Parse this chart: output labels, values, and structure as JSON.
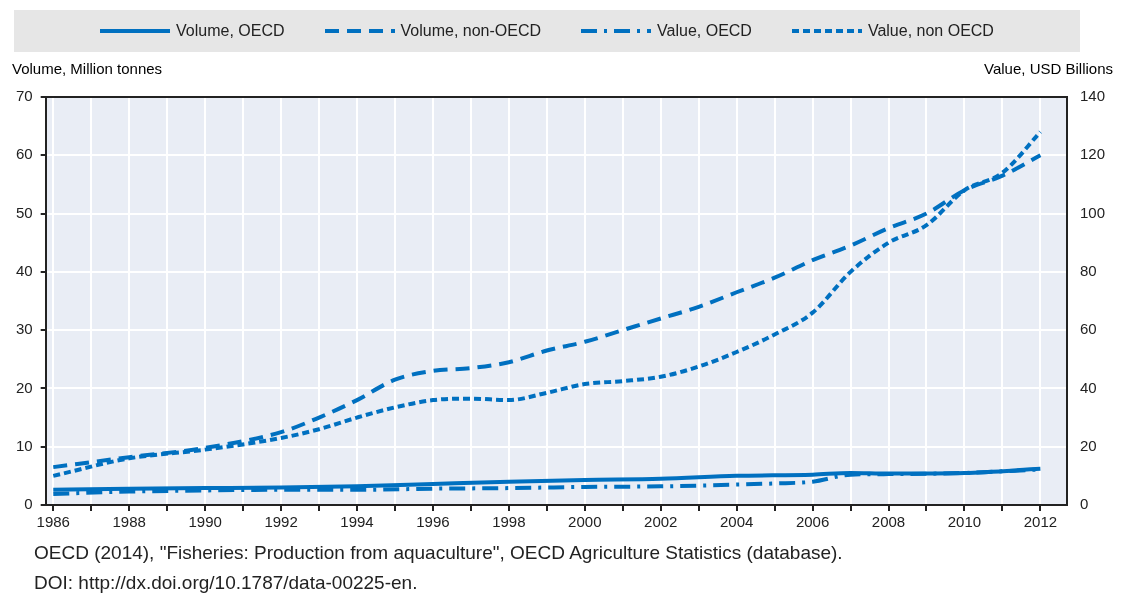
{
  "chart_data": {
    "type": "line",
    "ylabel": "Volume, Million tonnes",
    "y2label": "Value, USD Billions",
    "xlim": [
      1985.8,
      2012.7
    ],
    "xticks": [
      1986,
      {
        "value": 1987,
        "label": null
      },
      1988,
      {
        "value": 1989,
        "label": null
      },
      1990,
      {
        "value": 1991,
        "label": null
      },
      1992,
      {
        "value": 1993,
        "label": null
      },
      1994,
      {
        "value": 1995,
        "label": null
      },
      1996,
      {
        "value": 1997,
        "label": null
      },
      1998,
      {
        "value": 1999,
        "label": null
      },
      2000,
      {
        "value": 2001,
        "label": null
      },
      2002,
      {
        "value": 2003,
        "label": null
      },
      2004,
      {
        "value": 2005,
        "label": null
      },
      2006,
      {
        "value": 2007,
        "label": null
      },
      2008,
      {
        "value": 2009,
        "label": null
      },
      2010,
      {
        "value": 2011,
        "label": null
      },
      2012
    ],
    "ylim": [
      0,
      70
    ],
    "yticks": [
      0,
      10,
      20,
      30,
      40,
      50,
      60,
      70
    ],
    "y2lim": [
      0,
      140
    ],
    "y2ticks": [
      0,
      20,
      40,
      60,
      80,
      100,
      120,
      140
    ],
    "grid": true,
    "legend": "top",
    "marker": "none",
    "series": [
      {
        "name": "Volume, OECD",
        "color": "#0070c0",
        "line_style": "solid",
        "x": [
          1986,
          1988,
          1990,
          1992,
          1994,
          1996,
          1998,
          2000,
          2002,
          2004,
          2006,
          2007,
          2008,
          2010,
          2012
        ],
        "values": [
          2.6,
          2.8,
          2.9,
          3.0,
          3.2,
          3.6,
          4.0,
          4.3,
          4.5,
          5.0,
          5.2,
          5.5,
          5.4,
          5.5,
          6.2
        ]
      },
      {
        "name": "Volume, non-OECD",
        "color": "#0070c0",
        "line_style": "dashed",
        "x": [
          1986,
          1988,
          1990,
          1992,
          1993,
          1994,
          1995,
          1996,
          1997,
          1998,
          1999,
          2000,
          2001,
          2002,
          2003,
          2004,
          2005,
          2006,
          2007,
          2008,
          2009,
          2010,
          2011,
          2012
        ],
        "values": [
          6.5,
          8.2,
          9.8,
          12.5,
          15,
          18,
          21.5,
          23,
          23.5,
          24.5,
          26.5,
          28,
          30,
          32,
          34,
          36.5,
          39,
          42,
          44.5,
          47.5,
          50,
          54,
          56.5,
          60
        ]
      },
      {
        "name": "Value, OECD",
        "color": "#0070c0",
        "line_style": "dashdot",
        "axis": "y2",
        "x": [
          1986,
          1988,
          1990,
          1992,
          1994,
          1996,
          1998,
          2000,
          2002,
          2004,
          2005,
          2006,
          2007,
          2008,
          2010,
          2012
        ],
        "values": [
          3.8,
          4.6,
          5.0,
          5.2,
          5.2,
          5.6,
          5.8,
          6.2,
          6.4,
          7.0,
          7.4,
          8.0,
          10.4,
          10.6,
          11.0,
          12.2
        ]
      },
      {
        "name": "Value, non OECD",
        "color": "#0070c0",
        "line_style": "dotted",
        "axis": "y2",
        "x": [
          1986,
          1988,
          1990,
          1992,
          1993,
          1994,
          1995,
          1996,
          1997,
          1998,
          1999,
          2000,
          2001,
          2002,
          2003,
          2004,
          2005,
          2006,
          2007,
          2008,
          2009,
          2010,
          2011,
          2012
        ],
        "values": [
          10,
          16,
          19,
          23,
          26,
          30,
          33.5,
          36,
          36.5,
          36,
          38.5,
          41.5,
          42.5,
          44,
          47.5,
          52.5,
          58.5,
          66,
          80,
          90,
          96,
          108,
          114,
          128
        ]
      }
    ],
    "annotations": [
      "OECD (2014), \"Fisheries: Production from aquaculture\", OECD Agriculture Statistics (database).",
      "DOI: http://dx.doi.org/10.1787/data-00225-en."
    ]
  }
}
